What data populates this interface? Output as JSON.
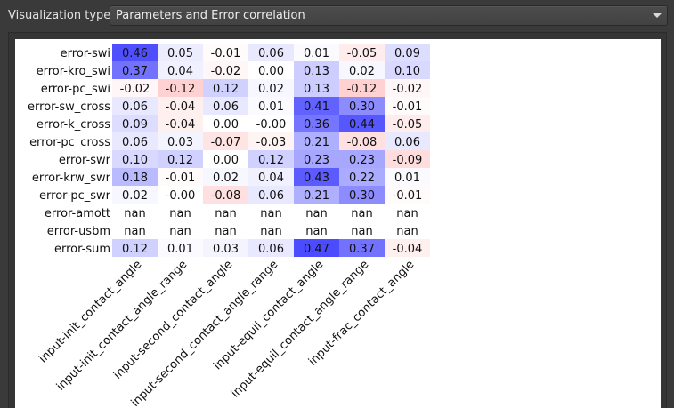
{
  "toolbar": {
    "visualization_label": "Visualization type:",
    "visualization_value": "Parameters and Error correlation"
  },
  "chart_data": {
    "type": "heatmap",
    "rows": [
      "error-swi",
      "error-kro_swi",
      "error-pc_swi",
      "error-sw_cross",
      "error-k_cross",
      "error-pc_cross",
      "error-swr",
      "error-krw_swr",
      "error-pc_swr",
      "error-amott",
      "error-usbm",
      "error-sum"
    ],
    "columns": [
      "input-init_contact_angle",
      "input-init_contact_angle_range",
      "input-second_contact_angle",
      "input-second_contact_angle_range",
      "input-equil_contact_angle",
      "input-equil_contact_angle_range",
      "input-frac_contact_angle"
    ],
    "values": [
      [
        0.46,
        0.05,
        -0.01,
        0.06,
        0.01,
        -0.05,
        0.09
      ],
      [
        0.37,
        0.04,
        -0.02,
        0.0,
        0.13,
        0.02,
        0.1
      ],
      [
        -0.02,
        -0.12,
        0.12,
        0.02,
        0.13,
        -0.12,
        -0.02
      ],
      [
        0.06,
        -0.04,
        0.06,
        0.01,
        0.41,
        0.3,
        -0.01
      ],
      [
        0.09,
        -0.04,
        0.0,
        -0.0,
        0.36,
        0.44,
        -0.05
      ],
      [
        0.06,
        0.03,
        -0.07,
        -0.03,
        0.21,
        -0.08,
        0.06
      ],
      [
        0.1,
        0.12,
        0.0,
        0.12,
        0.23,
        0.23,
        -0.09
      ],
      [
        0.18,
        -0.01,
        0.02,
        0.04,
        0.43,
        0.22,
        0.01
      ],
      [
        0.02,
        -0.0,
        -0.08,
        0.06,
        0.21,
        0.3,
        -0.01
      ],
      [
        "nan",
        "nan",
        "nan",
        "nan",
        "nan",
        "nan",
        "nan"
      ],
      [
        "nan",
        "nan",
        "nan",
        "nan",
        "nan",
        "nan",
        "nan"
      ],
      [
        0.12,
        0.01,
        0.03,
        0.06,
        0.47,
        0.37,
        -0.04
      ]
    ],
    "labels": [
      [
        "0.46",
        "0.05",
        "-0.01",
        "0.06",
        "0.01",
        "-0.05",
        "0.09"
      ],
      [
        "0.37",
        "0.04",
        "-0.02",
        "0.00",
        "0.13",
        "0.02",
        "0.10"
      ],
      [
        "-0.02",
        "-0.12",
        "0.12",
        "0.02",
        "0.13",
        "-0.12",
        "-0.02"
      ],
      [
        "0.06",
        "-0.04",
        "0.06",
        "0.01",
        "0.41",
        "0.30",
        "-0.01"
      ],
      [
        "0.09",
        "-0.04",
        "0.00",
        "-0.00",
        "0.36",
        "0.44",
        "-0.05"
      ],
      [
        "0.06",
        "0.03",
        "-0.07",
        "-0.03",
        "0.21",
        "-0.08",
        "0.06"
      ],
      [
        "0.10",
        "0.12",
        "0.00",
        "0.12",
        "0.23",
        "0.23",
        "-0.09"
      ],
      [
        "0.18",
        "-0.01",
        "0.02",
        "0.04",
        "0.43",
        "0.22",
        "0.01"
      ],
      [
        "0.02",
        "-0.00",
        "-0.08",
        "0.06",
        "0.21",
        "0.30",
        "-0.01"
      ],
      [
        "nan",
        "nan",
        "nan",
        "nan",
        "nan",
        "nan",
        "nan"
      ],
      [
        "nan",
        "nan",
        "nan",
        "nan",
        "nan",
        "nan",
        "nan"
      ],
      [
        "0.12",
        "0.01",
        "0.03",
        "0.06",
        "0.47",
        "0.37",
        "-0.04"
      ]
    ],
    "colors": {
      "positive": "#4040ff",
      "negative": "#ff4040",
      "neutral": "#ffffff",
      "text": "#111111"
    }
  }
}
